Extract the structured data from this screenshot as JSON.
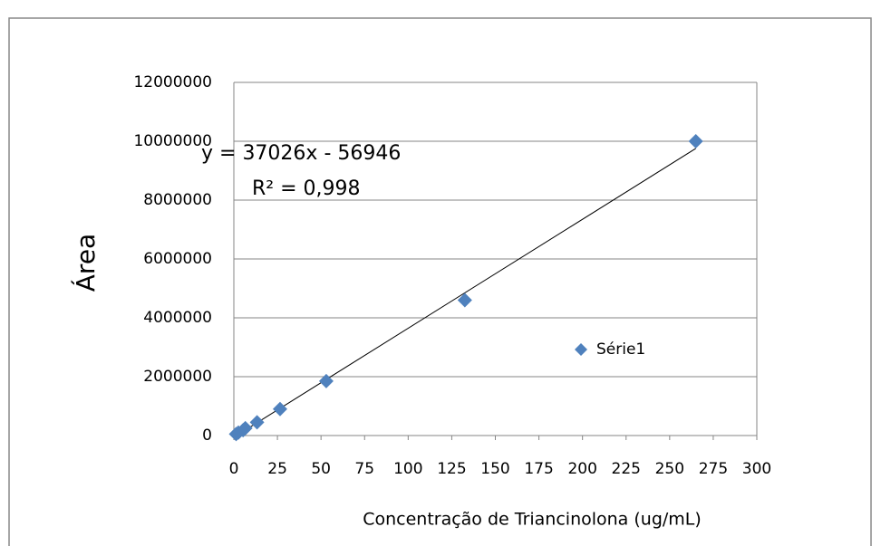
{
  "chart_data": {
    "type": "scatter",
    "x_label": "Concentração de Triancinolona (ug/mL)",
    "y_label": "Área",
    "series": [
      {
        "name": "Série1",
        "color": "#4f81bd",
        "x": [
          1.3,
          2.6,
          5.3,
          6.6,
          13.3,
          26.5,
          53,
          132.5,
          265
        ],
        "values": [
          50000,
          100000,
          180000,
          250000,
          450000,
          900000,
          1850000,
          4600000,
          10000000
        ]
      }
    ],
    "trendline": {
      "slope": 37026,
      "intercept": -56946,
      "label": "y = 37026x - 56946"
    },
    "r2_label": "R² = 0,998",
    "xlim": [
      0,
      300
    ],
    "xticks": [
      0,
      25,
      50,
      75,
      100,
      125,
      150,
      175,
      200,
      225,
      250,
      275,
      300
    ],
    "ylim": [
      0,
      12000000
    ],
    "yticks": [
      0,
      2000000,
      4000000,
      6000000,
      8000000,
      10000000,
      12000000
    ],
    "grid": true,
    "legend": "right"
  }
}
